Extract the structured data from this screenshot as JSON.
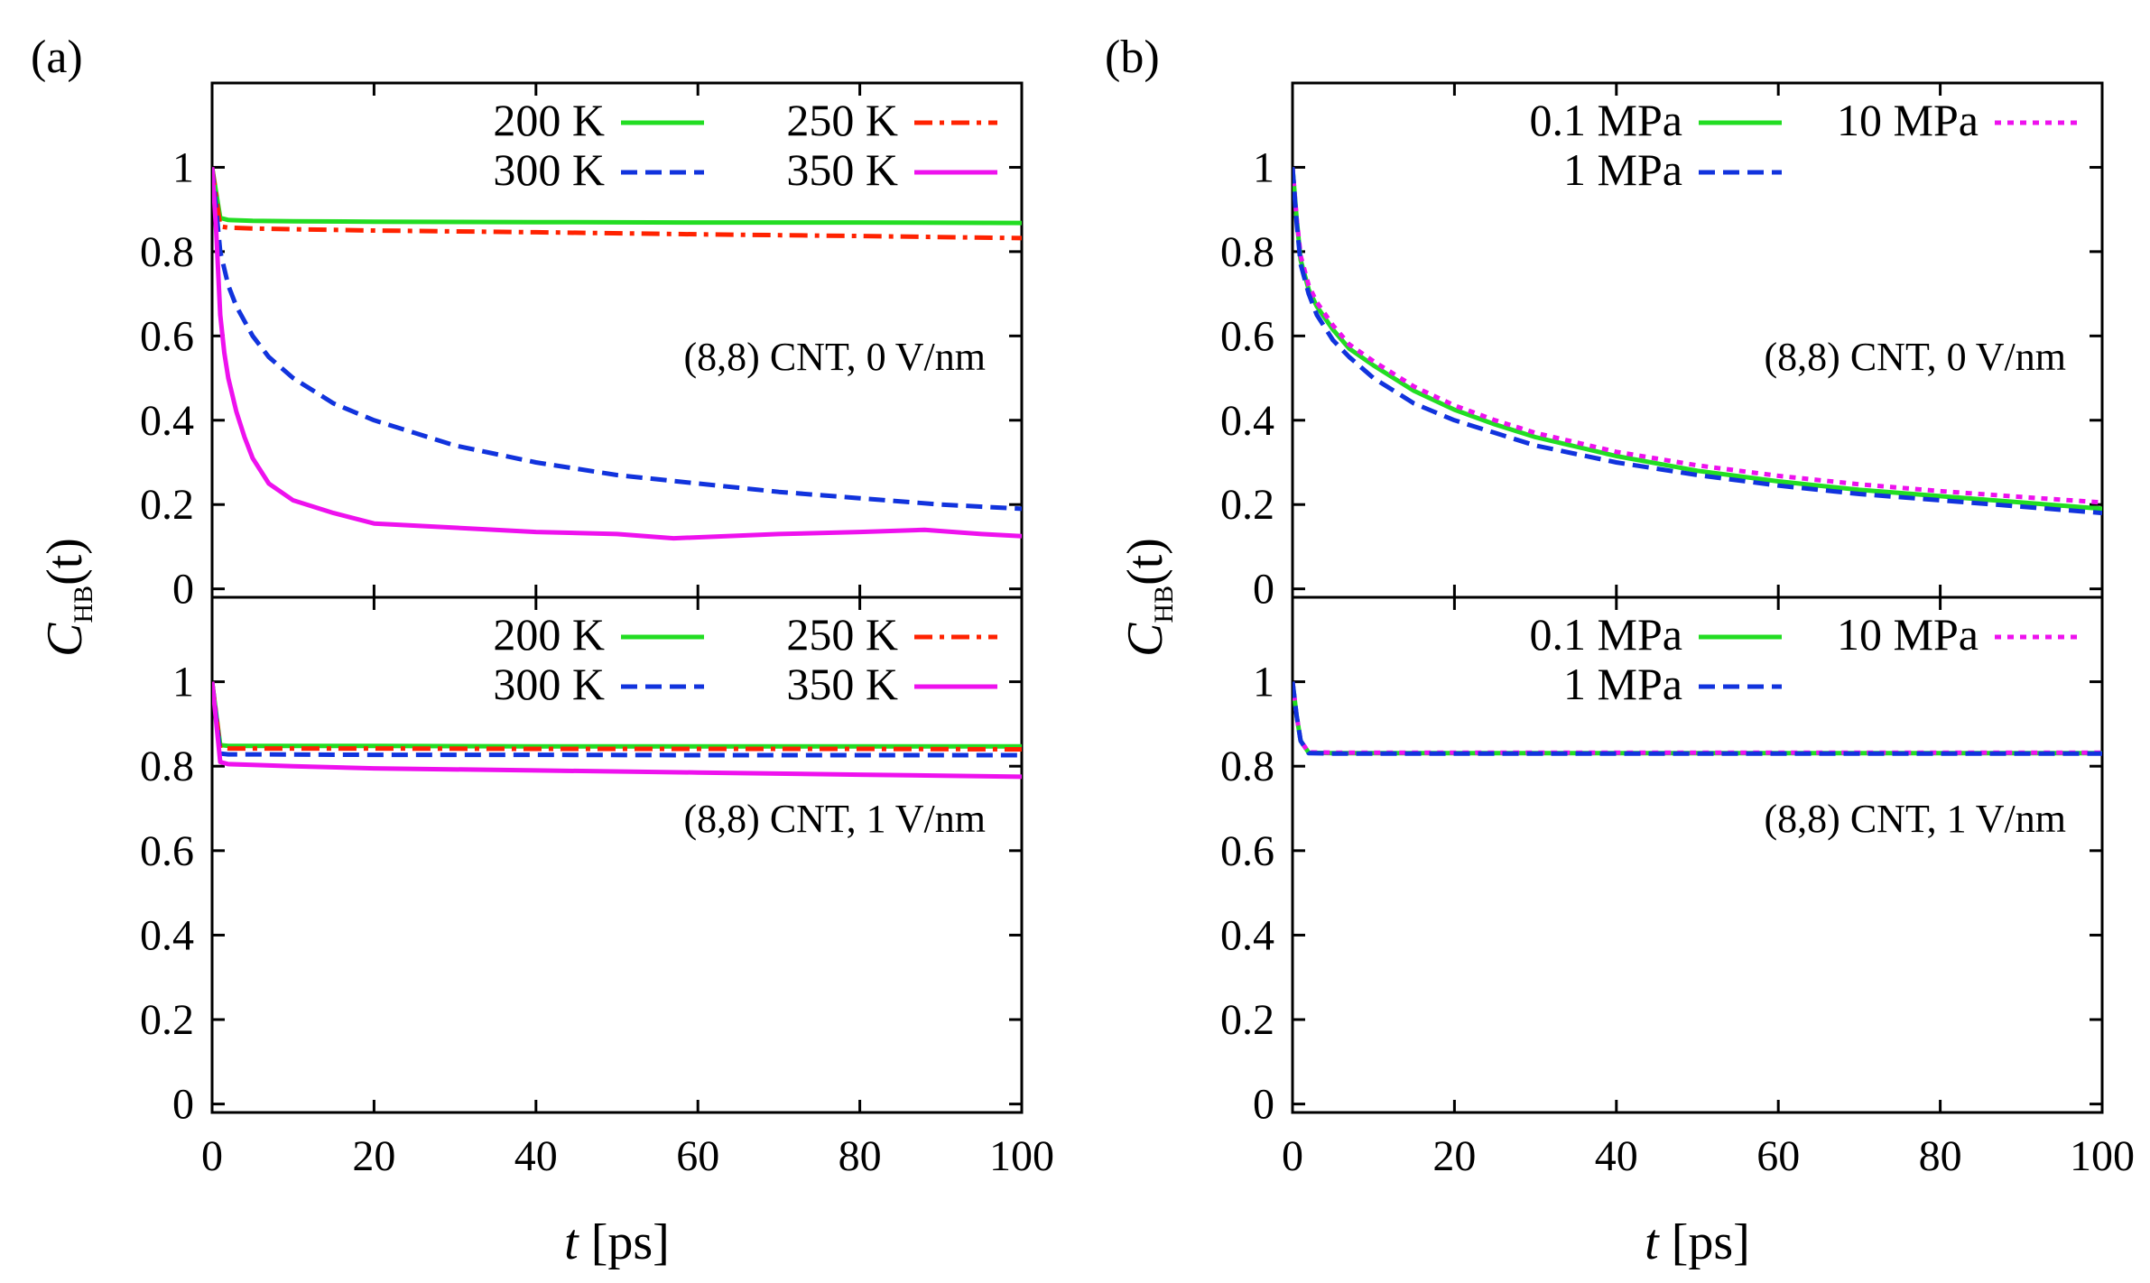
{
  "colors": {
    "green": "#22dd22",
    "red": "#ff2200",
    "blue": "#1133dd",
    "magenta": "#ee11ee",
    "axis": "#000000"
  },
  "figure": {
    "ylabel_main": "C",
    "ylabel_sub": "HB",
    "ylabel_arg": "(t)",
    "xlabel_var": "t",
    "xlabel_unit": "[ps]",
    "x_ticks": [
      "0",
      "20",
      "40",
      "60",
      "80",
      "100"
    ],
    "y_ticks": [
      "0",
      "0.2",
      "0.4",
      "0.6",
      "0.8",
      "1"
    ]
  },
  "chart_data": [
    {
      "type": "line",
      "panel": "(a)",
      "position": "top",
      "annotation": "(8,8) CNT, 0 V/nm",
      "xlabel": "t [ps]",
      "ylabel": "C_HB(t)",
      "xlim": [
        0,
        100
      ],
      "ylim": [
        -0.02,
        1.2
      ],
      "legend_columns": 2,
      "series": [
        {
          "name": "200 K",
          "color": "#22dd22",
          "dash": "solid",
          "x": [
            0,
            1,
            2,
            5,
            10,
            20,
            40,
            60,
            80,
            100
          ],
          "values": [
            1.0,
            0.88,
            0.875,
            0.873,
            0.872,
            0.871,
            0.87,
            0.869,
            0.869,
            0.868
          ]
        },
        {
          "name": "250 K",
          "color": "#ff2200",
          "dash": "dashdot",
          "x": [
            0,
            1,
            2,
            5,
            10,
            20,
            40,
            60,
            80,
            100
          ],
          "values": [
            1.0,
            0.86,
            0.857,
            0.855,
            0.853,
            0.85,
            0.846,
            0.841,
            0.837,
            0.832
          ]
        },
        {
          "name": "300 K",
          "color": "#1133dd",
          "dash": "dashed",
          "x": [
            0,
            0.5,
            1,
            2,
            3,
            5,
            7,
            10,
            15,
            20,
            25,
            30,
            40,
            50,
            60,
            70,
            80,
            90,
            100
          ],
          "values": [
            1.0,
            0.9,
            0.8,
            0.72,
            0.67,
            0.6,
            0.55,
            0.5,
            0.44,
            0.4,
            0.37,
            0.34,
            0.3,
            0.27,
            0.25,
            0.23,
            0.215,
            0.2,
            0.19
          ]
        },
        {
          "name": "350 K",
          "color": "#ee11ee",
          "dash": "solid",
          "x": [
            0,
            0.5,
            1,
            1.5,
            2,
            3,
            4,
            5,
            7,
            10,
            15,
            20,
            30,
            40,
            50,
            57,
            70,
            80,
            88,
            95,
            100
          ],
          "values": [
            1.0,
            0.85,
            0.65,
            0.56,
            0.5,
            0.42,
            0.36,
            0.31,
            0.25,
            0.21,
            0.18,
            0.155,
            0.145,
            0.135,
            0.13,
            0.12,
            0.13,
            0.135,
            0.14,
            0.13,
            0.125
          ]
        }
      ]
    },
    {
      "type": "line",
      "panel": "(a)",
      "position": "bottom",
      "annotation": "(8,8) CNT, 1 V/nm",
      "xlabel": "t [ps]",
      "ylabel": "C_HB(t)",
      "xlim": [
        0,
        100
      ],
      "ylim": [
        -0.02,
        1.2
      ],
      "legend_columns": 2,
      "series": [
        {
          "name": "200 K",
          "color": "#22dd22",
          "dash": "solid",
          "x": [
            0,
            1,
            2,
            5,
            20,
            40,
            60,
            80,
            100
          ],
          "values": [
            1.0,
            0.85,
            0.848,
            0.848,
            0.848,
            0.847,
            0.847,
            0.847,
            0.847
          ]
        },
        {
          "name": "250 K",
          "color": "#ff2200",
          "dash": "dashdot",
          "x": [
            0,
            1,
            2,
            5,
            20,
            40,
            60,
            80,
            100
          ],
          "values": [
            1.0,
            0.843,
            0.842,
            0.842,
            0.842,
            0.841,
            0.841,
            0.841,
            0.84
          ]
        },
        {
          "name": "300 K",
          "color": "#1133dd",
          "dash": "dashed",
          "x": [
            0,
            1,
            2,
            5,
            20,
            40,
            60,
            80,
            100
          ],
          "values": [
            1.0,
            0.83,
            0.828,
            0.828,
            0.827,
            0.827,
            0.826,
            0.826,
            0.826
          ]
        },
        {
          "name": "350 K",
          "color": "#ee11ee",
          "dash": "solid",
          "x": [
            0,
            1,
            2,
            5,
            10,
            20,
            40,
            60,
            80,
            100
          ],
          "values": [
            1.0,
            0.81,
            0.805,
            0.803,
            0.8,
            0.795,
            0.79,
            0.785,
            0.78,
            0.775
          ]
        }
      ]
    },
    {
      "type": "line",
      "panel": "(b)",
      "position": "top",
      "annotation": "(8,8) CNT, 0 V/nm",
      "xlabel": "t [ps]",
      "ylabel": "C_HB(t)",
      "xlim": [
        0,
        100
      ],
      "ylim": [
        -0.02,
        1.2
      ],
      "legend_columns": 2,
      "series": [
        {
          "name": "0.1 MPa",
          "color": "#22dd22",
          "dash": "solid",
          "x": [
            0,
            0.5,
            1,
            2,
            3,
            5,
            7,
            10,
            15,
            20,
            25,
            30,
            40,
            50,
            60,
            70,
            80,
            90,
            100
          ],
          "values": [
            1.0,
            0.88,
            0.78,
            0.71,
            0.67,
            0.615,
            0.57,
            0.53,
            0.47,
            0.425,
            0.39,
            0.36,
            0.315,
            0.28,
            0.255,
            0.235,
            0.22,
            0.205,
            0.19
          ]
        },
        {
          "name": "10 MPa",
          "color": "#ee11ee",
          "dash": "dotted",
          "x": [
            0,
            0.5,
            1,
            2,
            3,
            5,
            7,
            10,
            15,
            20,
            25,
            30,
            40,
            50,
            60,
            70,
            80,
            90,
            100
          ],
          "values": [
            1.0,
            0.88,
            0.79,
            0.72,
            0.68,
            0.625,
            0.58,
            0.54,
            0.48,
            0.435,
            0.4,
            0.37,
            0.325,
            0.293,
            0.268,
            0.248,
            0.232,
            0.218,
            0.205
          ]
        },
        {
          "name": "1 MPa",
          "color": "#1133dd",
          "dash": "dashed",
          "x": [
            0,
            0.5,
            1,
            2,
            3,
            5,
            7,
            10,
            15,
            20,
            25,
            30,
            40,
            50,
            60,
            70,
            80,
            90,
            100
          ],
          "values": [
            1.0,
            0.87,
            0.77,
            0.7,
            0.65,
            0.59,
            0.55,
            0.5,
            0.44,
            0.4,
            0.37,
            0.34,
            0.3,
            0.27,
            0.245,
            0.225,
            0.21,
            0.195,
            0.18
          ]
        }
      ]
    },
    {
      "type": "line",
      "panel": "(b)",
      "position": "bottom",
      "annotation": "(8,8) CNT, 1 V/nm",
      "xlabel": "t [ps]",
      "ylabel": "C_HB(t)",
      "xlim": [
        0,
        100
      ],
      "ylim": [
        -0.02,
        1.2
      ],
      "legend_columns": 2,
      "series": [
        {
          "name": "0.1 MPa",
          "color": "#22dd22",
          "dash": "solid",
          "x": [
            0,
            0.5,
            1,
            2,
            5,
            20,
            40,
            60,
            80,
            100
          ],
          "values": [
            1.0,
            0.92,
            0.86,
            0.832,
            0.831,
            0.831,
            0.831,
            0.831,
            0.831,
            0.831
          ]
        },
        {
          "name": "10 MPa",
          "color": "#ee11ee",
          "dash": "dotted",
          "x": [
            0,
            0.5,
            1,
            2,
            5,
            20,
            40,
            60,
            80,
            100
          ],
          "values": [
            1.0,
            0.92,
            0.86,
            0.833,
            0.832,
            0.832,
            0.832,
            0.832,
            0.832,
            0.832
          ]
        },
        {
          "name": "1 MPa",
          "color": "#1133dd",
          "dash": "dashed",
          "x": [
            0,
            0.5,
            1,
            2,
            5,
            20,
            40,
            60,
            80,
            100
          ],
          "values": [
            1.0,
            0.92,
            0.86,
            0.831,
            0.83,
            0.83,
            0.83,
            0.83,
            0.83,
            0.83
          ]
        }
      ]
    }
  ]
}
